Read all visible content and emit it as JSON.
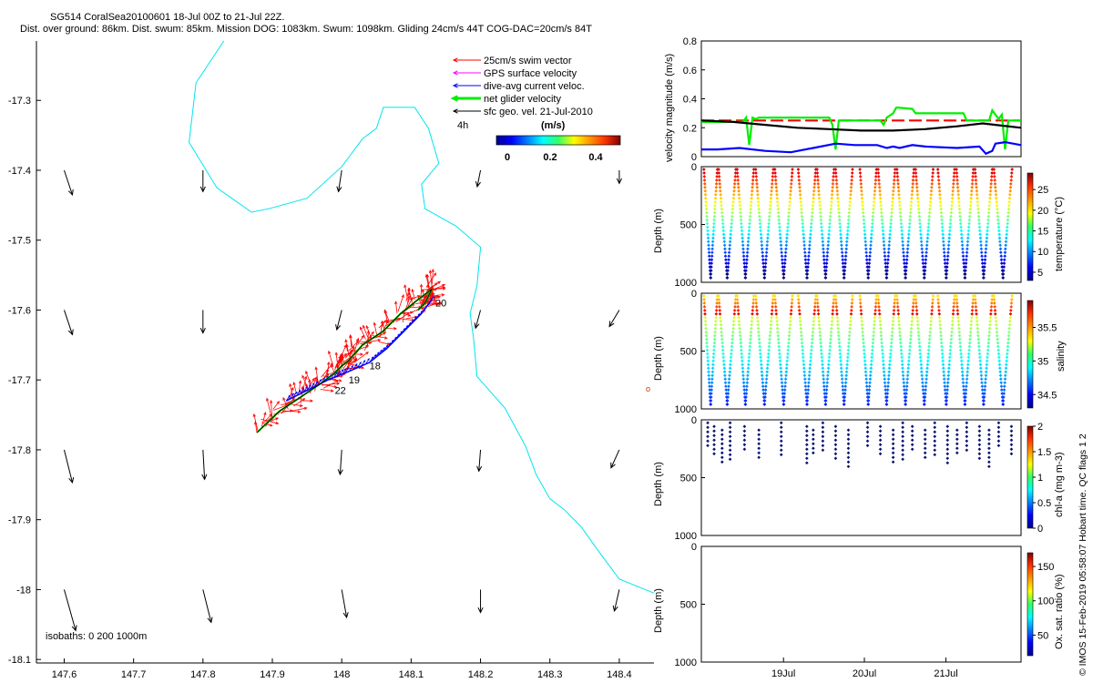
{
  "header": {
    "title_line1": "SG514 CoralSea20100601 18-Jul 00Z to 21-Jul 22Z.",
    "title_line2": "Dist. over ground: 86km. Dist. swum: 85km. Mission DOG: 1083km. Swum: 1098km. Gliding 24cm/s 44T COG-DAC=20cm/s 84T"
  },
  "side_note": "© IMOS 15-Feb-2019 05:58:07 Hobart time. QC flags 1 2",
  "colors": {
    "swim_vector": "#ff0000",
    "gps_velocity": "#ff00ff",
    "dac_velocity": "#0000ff",
    "net_velocity": "#00ee00",
    "sfc_geo": "#000000",
    "coastline": "#00e5ee"
  },
  "chart_data": [
    {
      "type": "map",
      "title": "",
      "x_ticks": [
        "147.6",
        "147.7",
        "147.8",
        "147.9",
        "148",
        "148.1",
        "148.2",
        "148.3",
        "148.4"
      ],
      "y_ticks": [
        "-17.3",
        "-17.4",
        "-17.5",
        "-17.6",
        "-17.7",
        "-17.8",
        "-17.9",
        "-18",
        "-18.1"
      ],
      "xlim": [
        147.56,
        148.45
      ],
      "ylim": [
        -18.105,
        -17.215
      ],
      "legend": {
        "placement": "top-right",
        "entries": [
          {
            "label": "25cm/s swim vector",
            "color": "#ff0000"
          },
          {
            "label": "GPS surface velocity",
            "color": "#ff00ff"
          },
          {
            "label": "dive-avg current veloc.",
            "color": "#0000ff"
          },
          {
            "label": "net glider velocity",
            "color": "#00ee00"
          },
          {
            "label": "sfc geo. vel. 21-Jul-2010",
            "color": "#000000"
          }
        ]
      },
      "colorbar": {
        "label": "(m/s)",
        "ticks": [
          "0",
          "0.2",
          "0.4"
        ],
        "time_label": "4h",
        "range": [
          0,
          0.5
        ]
      },
      "isobaths_label": "isobaths: 0   200   1000m",
      "track_labels": [
        {
          "text": "20",
          "lon": 148.135,
          "lat": -17.595
        },
        {
          "text": "18",
          "lon": 148.04,
          "lat": -17.685
        },
        {
          "text": "19",
          "lon": 148.01,
          "lat": -17.705
        },
        {
          "text": "22",
          "lon": 147.99,
          "lat": -17.72
        }
      ],
      "coastline": [
        [
          147.83,
          -17.215
        ],
        [
          147.79,
          -17.275
        ],
        [
          147.78,
          -17.36
        ],
        [
          147.82,
          -17.425
        ],
        [
          147.87,
          -17.46
        ],
        [
          147.895,
          -17.455
        ],
        [
          147.95,
          -17.44
        ],
        [
          148.0,
          -17.395
        ],
        [
          148.03,
          -17.355
        ],
        [
          148.05,
          -17.34
        ],
        [
          148.06,
          -17.31
        ],
        [
          148.105,
          -17.31
        ],
        [
          148.125,
          -17.34
        ],
        [
          148.14,
          -17.39
        ],
        [
          148.115,
          -17.42
        ],
        [
          148.12,
          -17.455
        ],
        [
          148.165,
          -17.48
        ],
        [
          148.2,
          -17.51
        ],
        [
          148.195,
          -17.565
        ],
        [
          148.185,
          -17.605
        ],
        [
          148.19,
          -17.64
        ],
        [
          148.195,
          -17.695
        ],
        [
          148.235,
          -17.74
        ],
        [
          148.265,
          -17.795
        ],
        [
          148.28,
          -17.835
        ],
        [
          148.3,
          -17.87
        ],
        [
          148.32,
          -17.885
        ],
        [
          148.345,
          -17.91
        ],
        [
          148.37,
          -17.945
        ],
        [
          148.4,
          -17.985
        ],
        [
          148.45,
          -18.005
        ]
      ],
      "track": [
        [
          147.878,
          -17.775
        ],
        [
          147.91,
          -17.745
        ],
        [
          147.94,
          -17.725
        ],
        [
          147.97,
          -17.705
        ],
        [
          147.99,
          -17.69
        ],
        [
          148.0,
          -17.68
        ],
        [
          148.01,
          -17.672
        ],
        [
          148.03,
          -17.65
        ],
        [
          148.06,
          -17.63
        ],
        [
          148.085,
          -17.605
        ],
        [
          148.11,
          -17.585
        ],
        [
          148.13,
          -17.57
        ],
        [
          148.12,
          -17.59
        ],
        [
          148.11,
          -17.6
        ]
      ],
      "dac_track": [
        [
          147.92,
          -17.73
        ],
        [
          147.95,
          -17.715
        ],
        [
          147.98,
          -17.7
        ],
        [
          148.005,
          -17.69
        ],
        [
          148.04,
          -17.675
        ],
        [
          148.065,
          -17.655
        ],
        [
          148.09,
          -17.63
        ],
        [
          148.115,
          -17.605
        ],
        [
          148.13,
          -17.585
        ]
      ],
      "current_grid": {
        "lons": [
          147.6,
          147.7,
          147.8,
          147.9,
          148.0,
          148.1,
          148.2,
          148.3,
          148.4
        ],
        "lats": [
          -17.4,
          -17.6,
          -17.8,
          -18.0
        ],
        "vectors": [
          {
            "lon": 147.6,
            "lat": -17.4,
            "u": 0.05,
            "v": -0.15
          },
          {
            "lon": 147.8,
            "lat": -17.4,
            "u": 0.0,
            "v": -0.13
          },
          {
            "lon": 148.0,
            "lat": -17.4,
            "u": -0.02,
            "v": -0.13
          },
          {
            "lon": 148.2,
            "lat": -17.4,
            "u": -0.02,
            "v": -0.1
          },
          {
            "lon": 148.4,
            "lat": -17.4,
            "u": 0.0,
            "v": -0.08
          },
          {
            "lon": 147.6,
            "lat": -17.6,
            "u": 0.05,
            "v": -0.15
          },
          {
            "lon": 147.8,
            "lat": -17.6,
            "u": 0.0,
            "v": -0.14
          },
          {
            "lon": 148.0,
            "lat": -17.6,
            "u": -0.03,
            "v": -0.12
          },
          {
            "lon": 148.2,
            "lat": -17.6,
            "u": -0.03,
            "v": -0.11
          },
          {
            "lon": 148.4,
            "lat": -17.6,
            "u": -0.06,
            "v": -0.1
          },
          {
            "lon": 147.6,
            "lat": -17.8,
            "u": 0.05,
            "v": -0.2
          },
          {
            "lon": 147.8,
            "lat": -17.8,
            "u": 0.01,
            "v": -0.18
          },
          {
            "lon": 148.0,
            "lat": -17.8,
            "u": -0.01,
            "v": -0.15
          },
          {
            "lon": 148.2,
            "lat": -17.8,
            "u": -0.01,
            "v": -0.13
          },
          {
            "lon": 148.4,
            "lat": -17.8,
            "u": -0.05,
            "v": -0.11
          },
          {
            "lon": 147.6,
            "lat": -18.0,
            "u": 0.07,
            "v": -0.25
          },
          {
            "lon": 147.8,
            "lat": -18.0,
            "u": 0.05,
            "v": -0.2
          },
          {
            "lon": 148.0,
            "lat": -18.0,
            "u": 0.03,
            "v": -0.17
          },
          {
            "lon": 148.2,
            "lat": -18.0,
            "u": 0.0,
            "v": -0.14
          },
          {
            "lon": 148.4,
            "lat": -18.0,
            "u": -0.03,
            "v": -0.13
          }
        ]
      }
    },
    {
      "type": "line",
      "ylabel": "velocity magnitude (m/s)",
      "ylim": [
        0,
        0.8
      ],
      "y_ticks": [
        "0",
        "0.2",
        "0.4",
        "0.6",
        "0.8"
      ],
      "xlim": [
        0,
        100
      ],
      "series": [
        {
          "name": "swim",
          "color": "#ff0000",
          "dashed": true,
          "x": [
            0,
            30,
            60,
            90,
            100
          ],
          "values": [
            0.25,
            0.25,
            0.25,
            0.25,
            0.25
          ]
        },
        {
          "name": "net",
          "color": "#00ee00",
          "x": [
            0,
            13,
            14,
            15,
            16,
            17,
            18,
            40,
            41,
            42,
            43,
            44,
            45,
            56,
            57,
            58,
            60,
            61,
            66,
            67,
            68,
            82,
            83,
            90,
            91,
            93,
            94,
            95,
            96,
            100
          ],
          "values": [
            0.24,
            0.24,
            0.27,
            0.08,
            0.27,
            0.26,
            0.27,
            0.27,
            0.22,
            0.05,
            0.25,
            0.25,
            0.25,
            0.25,
            0.22,
            0.27,
            0.3,
            0.34,
            0.33,
            0.3,
            0.3,
            0.3,
            0.25,
            0.25,
            0.32,
            0.26,
            0.29,
            0.05,
            0.25,
            0.25
          ]
        },
        {
          "name": "sfc",
          "color": "#000000",
          "x": [
            0,
            10,
            20,
            30,
            40,
            50,
            55,
            60,
            70,
            80,
            88,
            92,
            100
          ],
          "values": [
            0.25,
            0.24,
            0.22,
            0.2,
            0.19,
            0.18,
            0.18,
            0.18,
            0.19,
            0.21,
            0.23,
            0.22,
            0.2
          ]
        },
        {
          "name": "dac",
          "color": "#0000ff",
          "x": [
            0,
            5,
            12,
            20,
            28,
            35,
            42,
            48,
            55,
            58,
            60,
            62,
            66,
            70,
            80,
            87,
            89,
            91,
            92,
            95,
            100
          ],
          "values": [
            0.05,
            0.05,
            0.06,
            0.04,
            0.03,
            0.06,
            0.09,
            0.08,
            0.08,
            0.06,
            0.07,
            0.06,
            0.08,
            0.07,
            0.06,
            0.07,
            0.02,
            0.04,
            0.09,
            0.1,
            0.08
          ]
        }
      ]
    },
    {
      "type": "scatter",
      "ylabel": "Depth (m)",
      "cbar_label": "temperature (°C)",
      "cbar_ticks": [
        "5",
        "10",
        "15",
        "20",
        "25"
      ],
      "cbar_range": [
        3,
        29
      ],
      "y_ticks": [
        "0",
        "500",
        "1000"
      ],
      "ylim": [
        1000,
        0
      ],
      "dives": [
        {
          "start": 0.8,
          "end": 5.0
        },
        {
          "start": 5.4,
          "end": 10.8
        },
        {
          "start": 11.2,
          "end": 16.4
        },
        {
          "start": 17.0,
          "end": 22.5
        },
        {
          "start": 23.0,
          "end": 28.5
        },
        {
          "start": 30.3,
          "end": 35.8
        },
        {
          "start": 36.2,
          "end": 41.5
        },
        {
          "start": 42.0,
          "end": 47.3
        },
        {
          "start": 49.6,
          "end": 54.8
        },
        {
          "start": 55.3,
          "end": 60.6
        },
        {
          "start": 61.2,
          "end": 66.5
        },
        {
          "start": 67.0,
          "end": 72.5
        },
        {
          "start": 74.0,
          "end": 79.2
        },
        {
          "start": 79.8,
          "end": 85.1
        },
        {
          "start": 85.6,
          "end": 91.0
        },
        {
          "start": 91.5,
          "end": 97.2
        }
      ]
    },
    {
      "type": "scatter",
      "ylabel": "Depth (m)",
      "cbar_label": "salinity",
      "cbar_ticks": [
        "34.5",
        "35",
        "35.5"
      ],
      "cbar_range": [
        34.3,
        35.9
      ],
      "y_ticks": [
        "0",
        "500",
        "1000"
      ],
      "ylim": [
        1000,
        0
      ]
    },
    {
      "type": "scatter",
      "ylabel": "Depth (m)",
      "cbar_label": "chl-a (mg m-3)",
      "cbar_ticks": [
        "0",
        "0.5",
        "1",
        "1.5",
        "2"
      ],
      "cbar_range": [
        0,
        2
      ],
      "y_ticks": [
        "0",
        "500",
        "1000"
      ],
      "ylim": [
        1000,
        0
      ],
      "chl_dives": [
        2,
        4,
        6.5,
        9,
        13.5,
        18,
        25,
        33,
        35,
        38,
        42,
        46,
        52,
        56,
        60,
        63,
        66,
        70,
        73,
        77,
        80,
        83,
        87,
        90,
        93,
        97
      ]
    },
    {
      "type": "scatter",
      "ylabel": "Depth (m)",
      "cbar_label": "Ox. sat. ratio (%)",
      "cbar_ticks": [
        "50",
        "100",
        "150"
      ],
      "cbar_range": [
        20,
        170
      ],
      "y_ticks": [
        "0",
        "500",
        "1000"
      ],
      "ylim": [
        1000,
        0
      ],
      "x_ticks": [
        {
          "label": "19Jul",
          "x": 25.7
        },
        {
          "label": "20Jul",
          "x": 51.0
        },
        {
          "label": "21Jul",
          "x": 76.5
        }
      ]
    }
  ]
}
